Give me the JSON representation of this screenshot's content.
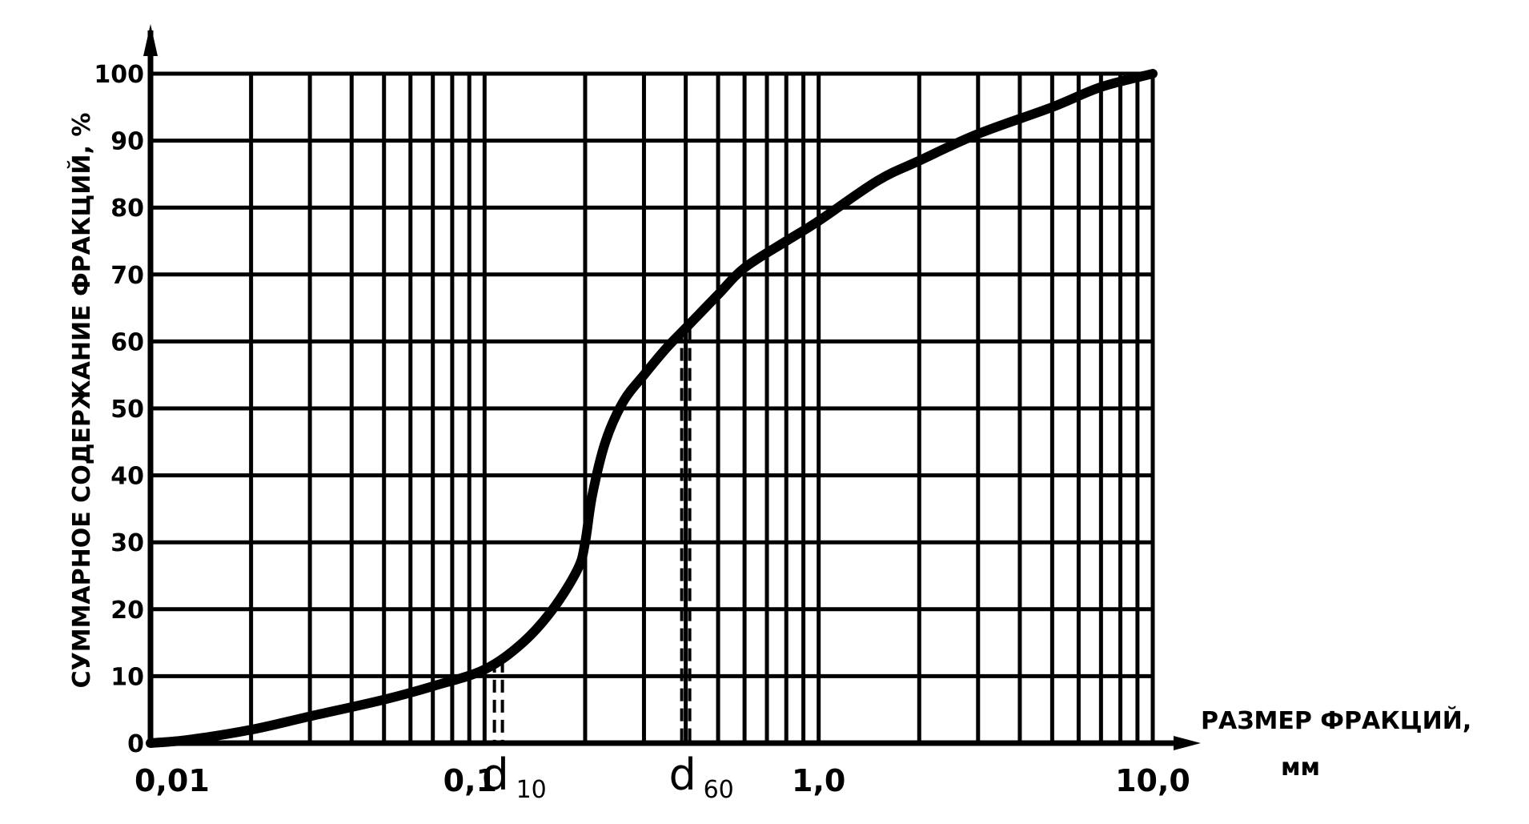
{
  "chart_data": {
    "type": "line",
    "xscale": "log",
    "xlim": [
      0.01,
      10.0
    ],
    "ylim": [
      0,
      100
    ],
    "ylabel": "СУММАРНОЕ СОДЕРЖАНИЕ ФРАКЦИЙ, %",
    "xlabel_line1": "РАЗМЕР ФРАКЦИЙ,",
    "xlabel_line2": "мм",
    "x_tick_labels": [
      {
        "value": 0.01,
        "label": "0,01"
      },
      {
        "value": 0.1,
        "label": "0,1"
      },
      {
        "value": 1.0,
        "label": "1,0"
      },
      {
        "value": 10.0,
        "label": "10,0"
      }
    ],
    "y_ticks": [
      0,
      10,
      20,
      30,
      40,
      50,
      60,
      70,
      80,
      90,
      100
    ],
    "grid": true,
    "series": [
      {
        "x": [
          0.01,
          0.013,
          0.02,
          0.03,
          0.05,
          0.07,
          0.1,
          0.13,
          0.16,
          0.19,
          0.2,
          0.21,
          0.23,
          0.26,
          0.3,
          0.35,
          0.4,
          0.5,
          0.6,
          0.8,
          1.0,
          1.5,
          2.0,
          3.0,
          5.0,
          7.0,
          10.0
        ],
        "y": [
          0,
          0.5,
          2,
          4,
          6.5,
          8.5,
          11,
          15,
          20,
          26,
          30,
          37,
          45,
          51,
          55,
          59,
          62,
          67,
          71,
          75,
          78,
          84,
          87,
          91,
          95,
          98,
          100
        ]
      }
    ],
    "annotations": [
      {
        "x": 0.11,
        "label": "d",
        "subscript": "10",
        "style": "dashed"
      },
      {
        "x": 0.4,
        "label": "d",
        "subscript": "60",
        "style": "dashed"
      }
    ]
  }
}
